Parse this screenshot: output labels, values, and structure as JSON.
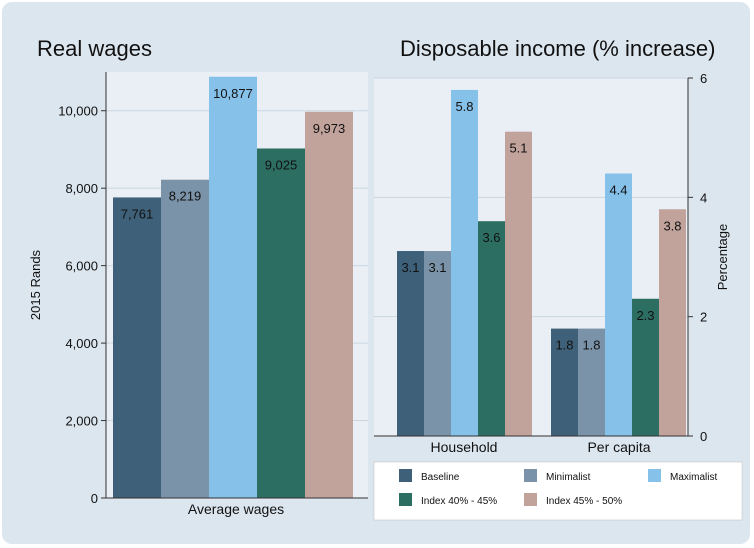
{
  "colors": {
    "background": "#dce6ef",
    "plot_background": "#e9eff4",
    "baseline": "#3e6079",
    "minimalist": "#7b93a8",
    "maximalist": "#86c1ea",
    "index_40_45": "#2d6e63",
    "index_45_50": "#c1a39c"
  },
  "legend": {
    "items": [
      {
        "label": "Baseline",
        "color_key": "baseline"
      },
      {
        "label": "Minimalist",
        "color_key": "minimalist"
      },
      {
        "label": "Maximalist",
        "color_key": "maximalist"
      },
      {
        "label": "Index 40% - 45%",
        "color_key": "index_40_45"
      },
      {
        "label": "Index 45% - 50%",
        "color_key": "index_45_50"
      }
    ]
  },
  "chart_data": [
    {
      "type": "bar",
      "title": "Real wages",
      "xlabel": "",
      "ylabel": "2015 Rands",
      "categories": [
        "Average wages"
      ],
      "ylim": [
        0,
        11000
      ],
      "yticks": [
        0,
        2000,
        4000,
        6000,
        8000,
        10000
      ],
      "ytick_labels": [
        "0",
        "2,000",
        "4,000",
        "6,000",
        "8,000",
        "10,000"
      ],
      "grid": true,
      "series": [
        {
          "name": "Baseline",
          "values": [
            7761
          ],
          "labels": [
            "7,761"
          ]
        },
        {
          "name": "Minimalist",
          "values": [
            8219
          ],
          "labels": [
            "8,219"
          ]
        },
        {
          "name": "Maximalist",
          "values": [
            10877
          ],
          "labels": [
            "10,877"
          ]
        },
        {
          "name": "Index 40% - 45%",
          "values": [
            9025
          ],
          "labels": [
            "9,025"
          ]
        },
        {
          "name": "Index 45% - 50%",
          "values": [
            9973
          ],
          "labels": [
            "9,973"
          ]
        }
      ]
    },
    {
      "type": "bar",
      "title": "Disposable income (% increase)",
      "xlabel": "",
      "ylabel": "Percentage",
      "y_axis_side": "right",
      "categories": [
        "Household",
        "Per capita"
      ],
      "ylim": [
        0,
        6
      ],
      "yticks": [
        0,
        2,
        4,
        6
      ],
      "ytick_labels": [
        "0",
        "2",
        "4",
        "6"
      ],
      "grid": true,
      "legend_position": "bottom",
      "series": [
        {
          "name": "Baseline",
          "values": [
            3.1,
            1.8
          ],
          "labels": [
            "3.1",
            "1.8"
          ]
        },
        {
          "name": "Minimalist",
          "values": [
            3.1,
            1.8
          ],
          "labels": [
            "3.1",
            "1.8"
          ]
        },
        {
          "name": "Maximalist",
          "values": [
            5.8,
            4.4
          ],
          "labels": [
            "5.8",
            "4.4"
          ]
        },
        {
          "name": "Index 40% - 45%",
          "values": [
            3.6,
            2.3
          ],
          "labels": [
            "3.6",
            "2.3"
          ]
        },
        {
          "name": "Index 45% - 50%",
          "values": [
            5.1,
            3.8
          ],
          "labels": [
            "5.1",
            "3.8"
          ]
        }
      ]
    }
  ]
}
